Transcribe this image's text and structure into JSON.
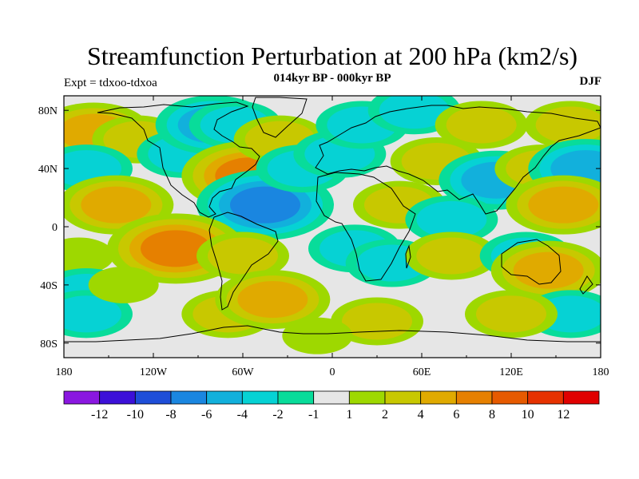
{
  "chart_data": {
    "type": "heatmap",
    "title": "Streamfunction Perturbation at 200 hPa (km2/s)",
    "subtitle_left": "Expt = tdxoo-tdxoa",
    "subtitle_center": "014kyr BP - 000kyr BP",
    "subtitle_right": "DJF",
    "x_ticks": [
      {
        "value": -180,
        "label": "180"
      },
      {
        "value": -120,
        "label": "120W"
      },
      {
        "value": -60,
        "label": "60W"
      },
      {
        "value": 0,
        "label": "0"
      },
      {
        "value": 60,
        "label": "60E"
      },
      {
        "value": 120,
        "label": "120E"
      },
      {
        "value": 180,
        "label": "180"
      }
    ],
    "y_ticks": [
      {
        "value": 80,
        "label": "80N"
      },
      {
        "value": 40,
        "label": "40N"
      },
      {
        "value": 0,
        "label": "0"
      },
      {
        "value": -40,
        "label": "40S"
      },
      {
        "value": -80,
        "label": "80S"
      }
    ],
    "xlim": [
      -180,
      180
    ],
    "ylim": [
      -90,
      90
    ],
    "colorbar": {
      "labels": [
        "-12",
        "-10",
        "-8",
        "-6",
        "-4",
        "-2",
        "-1",
        "1",
        "2",
        "4",
        "6",
        "8",
        "10",
        "12"
      ],
      "colors": [
        "#8a17e0",
        "#3c10d8",
        "#1e4ed8",
        "#1a86e0",
        "#12b0dc",
        "#06d2d4",
        "#08dc9a",
        "#e6e6e6",
        "#9ed800",
        "#c8c800",
        "#e0aa00",
        "#e68000",
        "#e65a00",
        "#e63200",
        "#e00000"
      ]
    },
    "field": [
      {
        "lon": -160,
        "lat": 65,
        "value": 4
      },
      {
        "lon": -130,
        "lat": 60,
        "value": 2
      },
      {
        "lon": -165,
        "lat": 40,
        "value": -3
      },
      {
        "lon": -145,
        "lat": 15,
        "value": 4
      },
      {
        "lon": -100,
        "lat": 50,
        "value": -2
      },
      {
        "lon": -80,
        "lat": 70,
        "value": -4
      },
      {
        "lon": -65,
        "lat": 70,
        "value": -3
      },
      {
        "lon": -55,
        "lat": 35,
        "value": 6
      },
      {
        "lon": -35,
        "lat": 60,
        "value": 2
      },
      {
        "lon": -45,
        "lat": 15,
        "value": -6
      },
      {
        "lon": -20,
        "lat": 40,
        "value": -3
      },
      {
        "lon": 5,
        "lat": 50,
        "value": -2
      },
      {
        "lon": 20,
        "lat": 70,
        "value": -3
      },
      {
        "lon": 55,
        "lat": 80,
        "value": -2
      },
      {
        "lon": 70,
        "lat": 45,
        "value": 2
      },
      {
        "lon": 100,
        "lat": 70,
        "value": 2
      },
      {
        "lon": 110,
        "lat": 32,
        "value": -4
      },
      {
        "lon": 140,
        "lat": 40,
        "value": 2
      },
      {
        "lon": 160,
        "lat": 70,
        "value": 2
      },
      {
        "lon": 170,
        "lat": 40,
        "value": -4
      },
      {
        "lon": 155,
        "lat": 15,
        "value": 4
      },
      {
        "lon": 45,
        "lat": 15,
        "value": 2
      },
      {
        "lon": 80,
        "lat": 5,
        "value": -2
      },
      {
        "lon": -105,
        "lat": -15,
        "value": 6
      },
      {
        "lon": -60,
        "lat": -20,
        "value": 2
      },
      {
        "lon": -170,
        "lat": -20,
        "value": 1
      },
      {
        "lon": -165,
        "lat": -45,
        "value": -2
      },
      {
        "lon": -165,
        "lat": -60,
        "value": -3
      },
      {
        "lon": -140,
        "lat": -40,
        "value": 1
      },
      {
        "lon": -70,
        "lat": -60,
        "value": 2
      },
      {
        "lon": -40,
        "lat": -50,
        "value": 4
      },
      {
        "lon": 15,
        "lat": -15,
        "value": -3
      },
      {
        "lon": 40,
        "lat": -25,
        "value": -2
      },
      {
        "lon": 80,
        "lat": -20,
        "value": 2
      },
      {
        "lon": 130,
        "lat": -20,
        "value": -2
      },
      {
        "lon": 145,
        "lat": -30,
        "value": 4
      },
      {
        "lon": 160,
        "lat": -60,
        "value": -3
      },
      {
        "lon": 120,
        "lat": -60,
        "value": 2
      },
      {
        "lon": 30,
        "lat": -65,
        "value": 2
      },
      {
        "lon": -10,
        "lat": -75,
        "value": 1
      }
    ]
  }
}
